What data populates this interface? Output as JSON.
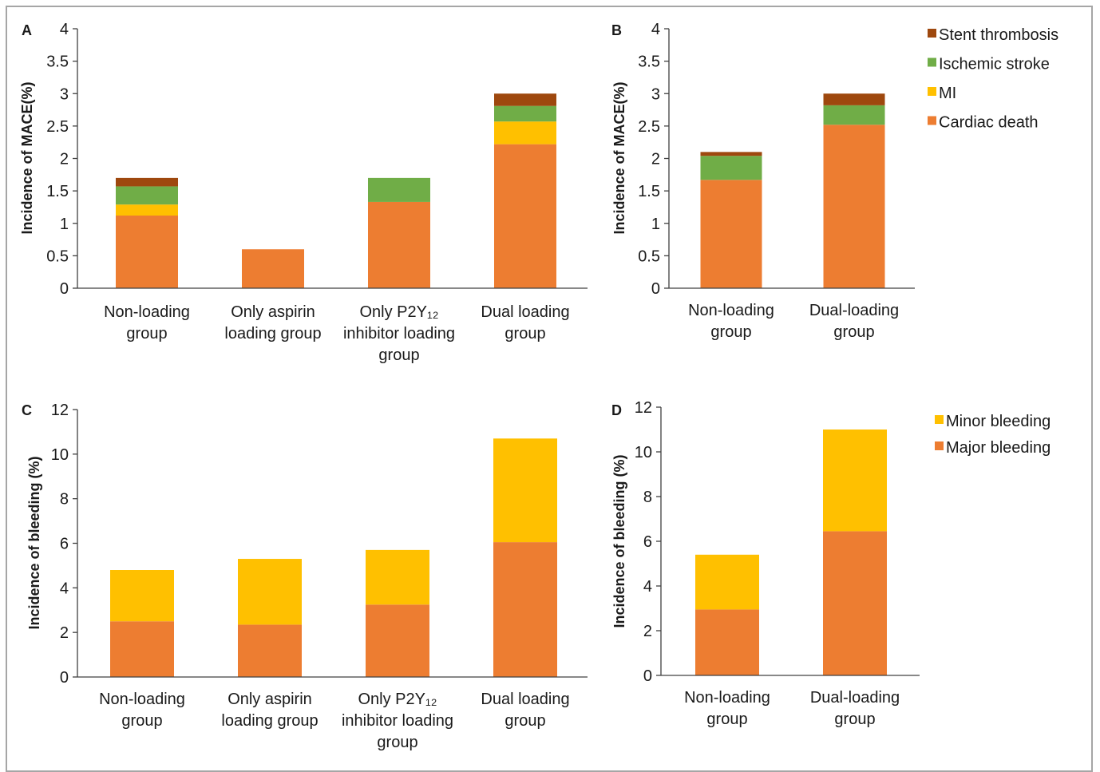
{
  "colors": {
    "cardiac_death": "#ed7d31",
    "mi": "#ffc000",
    "ischemic_stroke": "#70ad47",
    "stent_thrombosis": "#9e480e",
    "major_bleeding": "#ed7d31",
    "minor_bleeding": "#ffc000",
    "axis": "#404040",
    "frame": "#a6a6a6"
  },
  "chart_data": [
    {
      "panel": "A",
      "type": "bar",
      "stacked": true,
      "ylabel": "Incidence of MACE(%)",
      "ylim": [
        0,
        4
      ],
      "yticks": [
        "0",
        "0.5",
        "1",
        "1.5",
        "2",
        "2.5",
        "3",
        "3.5",
        "4"
      ],
      "grid": false,
      "categories": [
        [
          "Non-loading",
          "group"
        ],
        [
          "Only aspirin",
          "loading group"
        ],
        [
          "Only P2Y₁₂",
          "inhibitor loading",
          "group"
        ],
        [
          "Dual loading",
          "group"
        ]
      ],
      "series": [
        {
          "name": "Cardiac death",
          "color_key": "cardiac_death",
          "values": [
            1.12,
            0.6,
            1.33,
            2.22
          ]
        },
        {
          "name": "MI",
          "color_key": "mi",
          "values": [
            0.17,
            0,
            0,
            0.35
          ]
        },
        {
          "name": "Ischemic stroke",
          "color_key": "ischemic_stroke",
          "values": [
            0.28,
            0,
            0.37,
            0.24
          ]
        },
        {
          "name": "Stent thrombosis",
          "color_key": "stent_thrombosis",
          "values": [
            0.13,
            0,
            0,
            0.19
          ]
        }
      ]
    },
    {
      "panel": "B",
      "type": "bar",
      "stacked": true,
      "ylabel": "Incidence of MACE(%)",
      "ylim": [
        0,
        4
      ],
      "yticks": [
        "0",
        "0.5",
        "1",
        "1.5",
        "2",
        "2.5",
        "3",
        "3.5",
        "4"
      ],
      "grid": false,
      "legend_position": "top-right",
      "legend": [
        "Stent thrombosis",
        "Ischemic stroke",
        "MI",
        "Cardiac death"
      ],
      "categories": [
        [
          "Non-loading",
          "group"
        ],
        [
          "Dual-loading",
          "group"
        ]
      ],
      "series": [
        {
          "name": "Cardiac death",
          "color_key": "cardiac_death",
          "values": [
            1.67,
            2.52
          ]
        },
        {
          "name": "MI",
          "color_key": "mi",
          "values": [
            0,
            0
          ]
        },
        {
          "name": "Ischemic stroke",
          "color_key": "ischemic_stroke",
          "values": [
            0.37,
            0.3
          ]
        },
        {
          "name": "Stent thrombosis",
          "color_key": "stent_thrombosis",
          "values": [
            0.06,
            0.18
          ]
        }
      ]
    },
    {
      "panel": "C",
      "type": "bar",
      "stacked": true,
      "ylabel": "Incidence of bleeding (%)",
      "ylim": [
        0,
        12
      ],
      "yticks": [
        "0",
        "2",
        "4",
        "6",
        "8",
        "10",
        "12"
      ],
      "grid": false,
      "categories": [
        [
          "Non-loading",
          "group"
        ],
        [
          "Only aspirin",
          "loading group"
        ],
        [
          "Only P2Y₁₂",
          "inhibitor loading",
          "group"
        ],
        [
          "Dual loading",
          "group"
        ]
      ],
      "series": [
        {
          "name": "Major bleeding",
          "color_key": "major_bleeding",
          "values": [
            2.5,
            2.35,
            3.25,
            6.05
          ]
        },
        {
          "name": "Minor bleeding",
          "color_key": "minor_bleeding",
          "values": [
            2.3,
            2.95,
            2.45,
            4.65
          ]
        }
      ]
    },
    {
      "panel": "D",
      "type": "bar",
      "stacked": true,
      "ylabel": "Incidence of bleeding (%)",
      "ylim": [
        0,
        12
      ],
      "yticks": [
        "0",
        "2",
        "4",
        "6",
        "8",
        "10",
        "12"
      ],
      "grid": false,
      "legend_position": "top-right",
      "legend": [
        "Minor bleeding",
        "Major bleeding"
      ],
      "categories": [
        [
          "Non-loading",
          "group"
        ],
        [
          "Dual-loading",
          "group"
        ]
      ],
      "series": [
        {
          "name": "Major bleeding",
          "color_key": "major_bleeding",
          "values": [
            2.95,
            6.45
          ]
        },
        {
          "name": "Minor bleeding",
          "color_key": "minor_bleeding",
          "values": [
            2.45,
            4.55
          ]
        }
      ]
    }
  ]
}
